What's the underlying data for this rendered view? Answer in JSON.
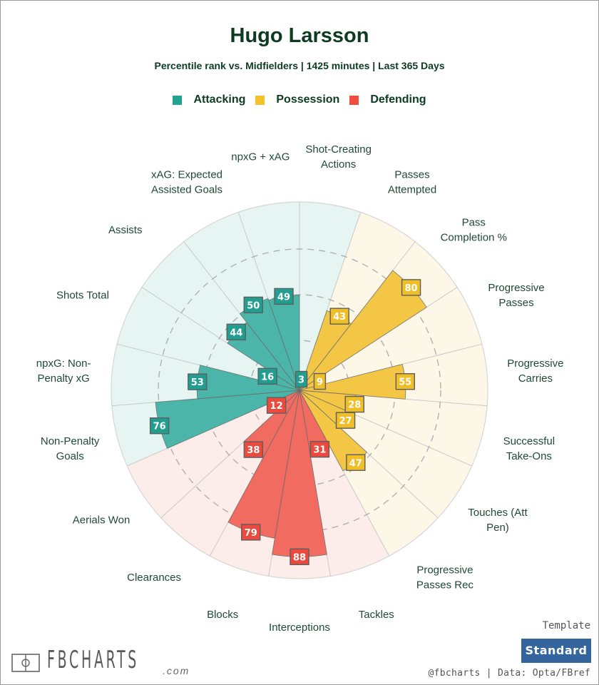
{
  "header": {
    "title": "Hugo Larsson",
    "subtitle": "Percentile rank vs. Midfielders | 1425 minutes | Last 365 Days"
  },
  "legend": [
    {
      "label": "Attacking",
      "color": "#22a495"
    },
    {
      "label": "Possession",
      "color": "#f2c12b"
    },
    {
      "label": "Defending",
      "color": "#ee4d40"
    }
  ],
  "colors": {
    "Attacking": {
      "bar": "#4bb5a9",
      "box": "#229e90",
      "bg": "#e6f5f2"
    },
    "Possession": {
      "bar": "#f3c745",
      "box": "#f0be26",
      "bg": "#fdf7e8"
    },
    "Defending": {
      "bar": "#f26b60",
      "box": "#ec4a3e",
      "bg": "#fcecea"
    }
  },
  "chart_data": {
    "type": "polar-bar",
    "title": "Hugo Larsson",
    "subtitle": "Percentile rank vs. Midfielders | 1425 minutes | Last 365 Days",
    "rlim": [
      0,
      100
    ],
    "gridlines": [
      25,
      50,
      75
    ],
    "direction": "clockwise",
    "start": "top",
    "categories": [
      {
        "label": "npxG + xAG",
        "lines": [
          "npxG + xAG"
        ],
        "group": "Attacking",
        "value": 49
      },
      {
        "label": "Shot-Creating Actions",
        "lines": [
          "Shot-Creating",
          "Actions"
        ],
        "group": "Attacking",
        "value": 3
      },
      {
        "label": "Passes Attempted",
        "lines": [
          "Passes",
          "Attempted"
        ],
        "group": "Possession",
        "value": 43
      },
      {
        "label": "Pass Completion %",
        "lines": [
          "Pass",
          "Completion %"
        ],
        "group": "Possession",
        "value": 80
      },
      {
        "label": "Progressive Passes",
        "lines": [
          "Progressive",
          "Passes"
        ],
        "group": "Possession",
        "value": 9
      },
      {
        "label": "Progressive Carries",
        "lines": [
          "Progressive",
          "Carries"
        ],
        "group": "Possession",
        "value": 55
      },
      {
        "label": "Successful Take-Ons",
        "lines": [
          "Successful",
          "Take-Ons"
        ],
        "group": "Possession",
        "value": 28
      },
      {
        "label": "Touches (Att Pen)",
        "lines": [
          "Touches (Att",
          "Pen)"
        ],
        "group": "Possession",
        "value": 27
      },
      {
        "label": "Progressive Passes Rec",
        "lines": [
          "Progressive",
          "Passes Rec"
        ],
        "group": "Possession",
        "value": 47
      },
      {
        "label": "Tackles",
        "lines": [
          "Tackles"
        ],
        "group": "Defending",
        "value": 31
      },
      {
        "label": "Interceptions",
        "lines": [
          "Interceptions"
        ],
        "group": "Defending",
        "value": 88
      },
      {
        "label": "Blocks",
        "lines": [
          "Blocks"
        ],
        "group": "Defending",
        "value": 79
      },
      {
        "label": "Clearances",
        "lines": [
          "Clearances"
        ],
        "group": "Defending",
        "value": 38
      },
      {
        "label": "Aerials Won",
        "lines": [
          "Aerials Won"
        ],
        "group": "Defending",
        "value": 12
      },
      {
        "label": "Non-Penalty Goals",
        "lines": [
          "Non-Penalty",
          "Goals"
        ],
        "group": "Attacking",
        "value": 76
      },
      {
        "label": "npxG: Non-Penalty xG",
        "lines": [
          "npxG: Non-",
          "Penalty xG"
        ],
        "group": "Attacking",
        "value": 53
      },
      {
        "label": "Shots Total",
        "lines": [
          "Shots Total"
        ],
        "group": "Attacking",
        "value": 16
      },
      {
        "label": "Assists",
        "lines": [
          "Assists"
        ],
        "group": "Attacking",
        "value": 44
      },
      {
        "label": "xAG: Expected Assisted Goals",
        "lines": [
          "xAG: Expected",
          "Assisted Goals"
        ],
        "group": "Attacking",
        "value": 50
      }
    ]
  },
  "footer": {
    "logo_text": "FBCHARTS",
    "logo_suffix": ".com",
    "template_label": "Template",
    "template_button": "Standard",
    "credit": "@fbcharts | Data: Opta/FBref"
  }
}
